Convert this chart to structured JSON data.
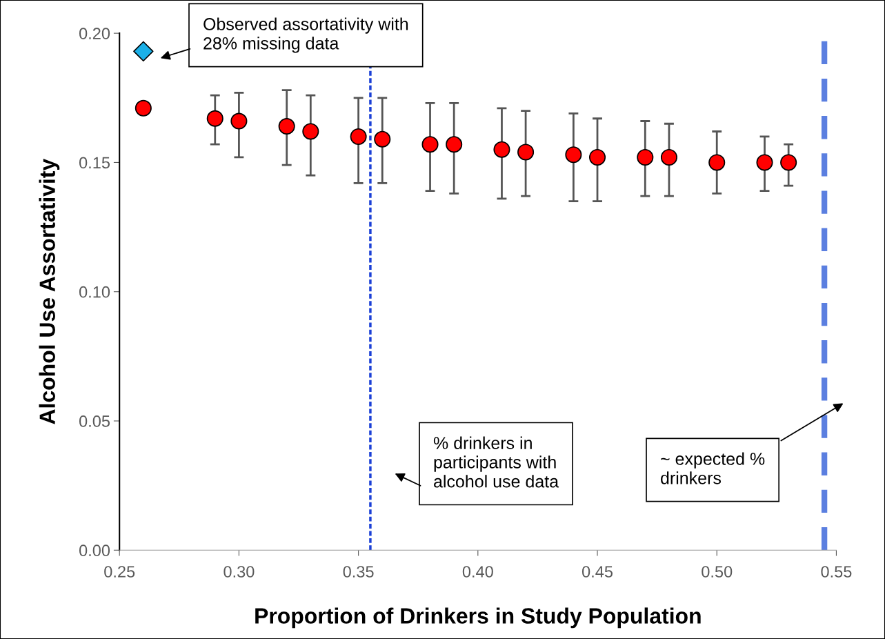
{
  "chart_data": {
    "type": "scatter",
    "xlabel": "Proportion of Drinkers in Study Population",
    "ylabel": "Alcohol Use Assortativity",
    "series": [
      {
        "color": "#ff0000",
        "marker": "circle",
        "x": [
          0.26,
          0.29,
          0.3,
          0.32,
          0.33,
          0.35,
          0.36,
          0.38,
          0.39,
          0.41,
          0.42,
          0.44,
          0.45,
          0.47,
          0.48,
          0.5,
          0.52,
          0.53
        ],
        "values": [
          0.171,
          0.167,
          0.166,
          0.164,
          0.162,
          0.16,
          0.159,
          0.157,
          0.157,
          0.155,
          0.154,
          0.153,
          0.152,
          0.152,
          0.152,
          0.15,
          0.15,
          0.15
        ],
        "errors": [
          null,
          [
            0.157,
            0.176
          ],
          [
            0.152,
            0.177
          ],
          [
            0.149,
            0.178
          ],
          [
            0.145,
            0.176
          ],
          [
            0.142,
            0.175
          ],
          [
            0.142,
            0.175
          ],
          [
            0.139,
            0.173
          ],
          [
            0.138,
            0.173
          ],
          [
            0.136,
            0.171
          ],
          [
            0.137,
            0.17
          ],
          [
            0.135,
            0.169
          ],
          [
            0.135,
            0.167
          ],
          [
            0.137,
            0.166
          ],
          [
            0.137,
            0.165
          ],
          [
            0.138,
            0.162
          ],
          [
            0.139,
            0.16
          ],
          [
            0.141,
            0.157
          ]
        ]
      },
      {
        "color": "#1ab0e8",
        "marker": "diamond",
        "x": [
          0.26
        ],
        "values": [
          0.193
        ]
      }
    ],
    "xlim": [
      0.25,
      0.55
    ],
    "xticks": [
      {
        "value": 0.25,
        "label": "0.25"
      },
      {
        "value": 0.3,
        "label": "0.30"
      },
      {
        "value": 0.35,
        "label": "0.35"
      },
      {
        "value": 0.4,
        "label": "0.40"
      },
      {
        "value": 0.45,
        "label": "0.45"
      },
      {
        "value": 0.5,
        "label": "0.50"
      },
      {
        "value": 0.55,
        "label": "0.55"
      }
    ],
    "ylim": [
      0,
      0.2
    ],
    "yticks": [
      {
        "value": 0,
        "label": "0.00"
      },
      {
        "value": 0.05,
        "label": "0.05"
      },
      {
        "value": 0.1,
        "label": "0.10"
      },
      {
        "value": 0.15,
        "label": "0.15"
      },
      {
        "value": 0.2,
        "label": "0.20"
      }
    ],
    "ref_lines": [
      {
        "axis": "x",
        "value": 0.355,
        "color": "#1a3fd6",
        "line_style": "dashed"
      },
      {
        "axis": "x",
        "value": 0.545,
        "color": "#5b7fe0",
        "line_style": "dashed"
      }
    ],
    "annotations": [
      "Observed assortativity with\n28% missing data",
      "% drinkers in\nparticipants with\nalcohol use data",
      "~ expected %\ndrinkers"
    ],
    "grid": false,
    "legend": false
  }
}
